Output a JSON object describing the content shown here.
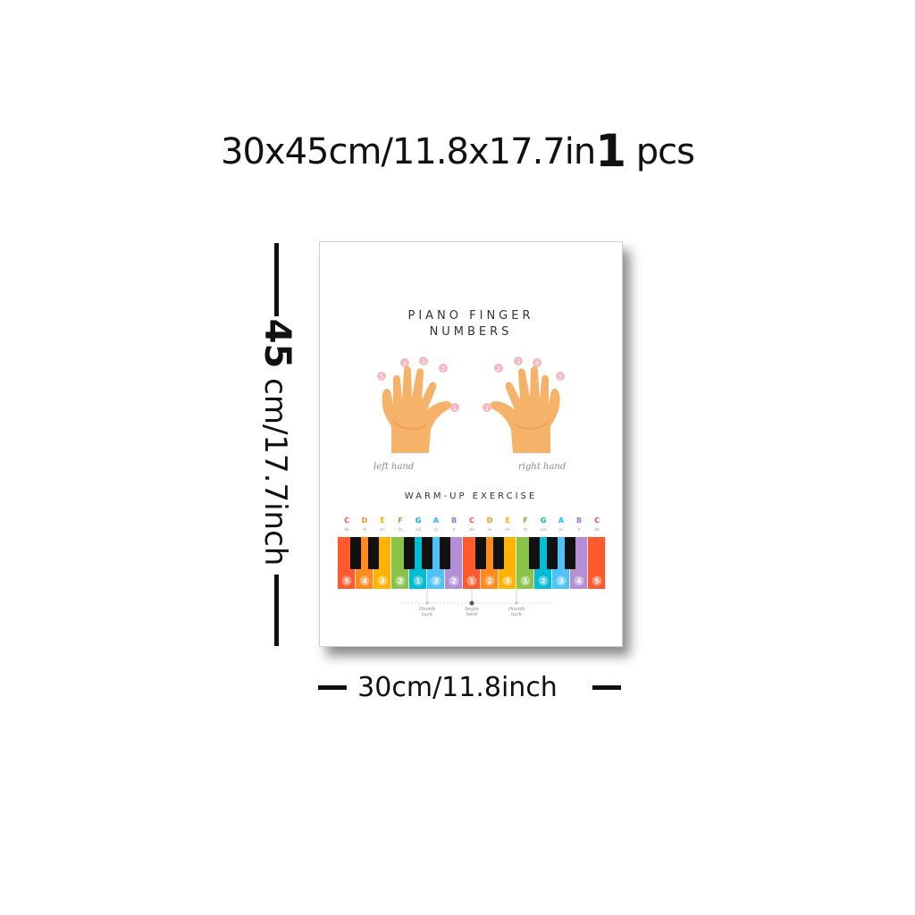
{
  "headline": {
    "size": "30x45cm/11.8x17.7in",
    "quantity": "1",
    "unit": "pcs"
  },
  "poster": {
    "title_line1": "PIANO FINGER",
    "title_line2": "NUMBERS",
    "left_hand_label": "left hand",
    "right_hand_label": "right hand",
    "section_title": "WARM-UP EXERCISE",
    "note_letters": [
      "C",
      "D",
      "E",
      "F",
      "G",
      "A",
      "B",
      "C",
      "D",
      "E",
      "F",
      "G",
      "A",
      "B",
      "C"
    ],
    "solfege": [
      "do",
      "re",
      "mi",
      "fa",
      "sol",
      "la",
      "ti",
      "do",
      "re",
      "mi",
      "fa",
      "sol",
      "la",
      "ti",
      "do"
    ],
    "finger_numbers": [
      "5",
      "4",
      "3",
      "2",
      "1",
      "3",
      "2",
      "1",
      "2",
      "3",
      "1",
      "2",
      "3",
      "4",
      "5"
    ],
    "key_colors": [
      "#ff5a2d",
      "#ff8a1e",
      "#ffb300",
      "#8bc34a",
      "#00bcd4",
      "#4fc3f7",
      "#b58fd6",
      "#ff5a2d",
      "#ff8a1e",
      "#ffb300",
      "#8bc34a",
      "#00bcd4",
      "#4fc3f7",
      "#b58fd6",
      "#ff5a2d"
    ],
    "letter_colors": [
      "#ff4a2a",
      "#ff8a1e",
      "#ffb300",
      "#7cb342",
      "#00acc1",
      "#29b6f6",
      "#9575cd",
      "#ff4a2a",
      "#ff8a1e",
      "#ffb300",
      "#7cb342",
      "#00acc1",
      "#29b6f6",
      "#9575cd",
      "#ff4a2a"
    ],
    "thumb_tuck_left": "thumb tuck",
    "begin_here": "begin here",
    "thumb_tuck_right": "thumb tuck"
  },
  "dimensions": {
    "height_value": "45",
    "height_rest": "cm/17.7inch",
    "width_label": "30cm/11.8inch"
  },
  "colors": {
    "skin": "#f7b26a",
    "skin_shadow": "#e8934a",
    "finger_dot": "#f6b8bf"
  }
}
